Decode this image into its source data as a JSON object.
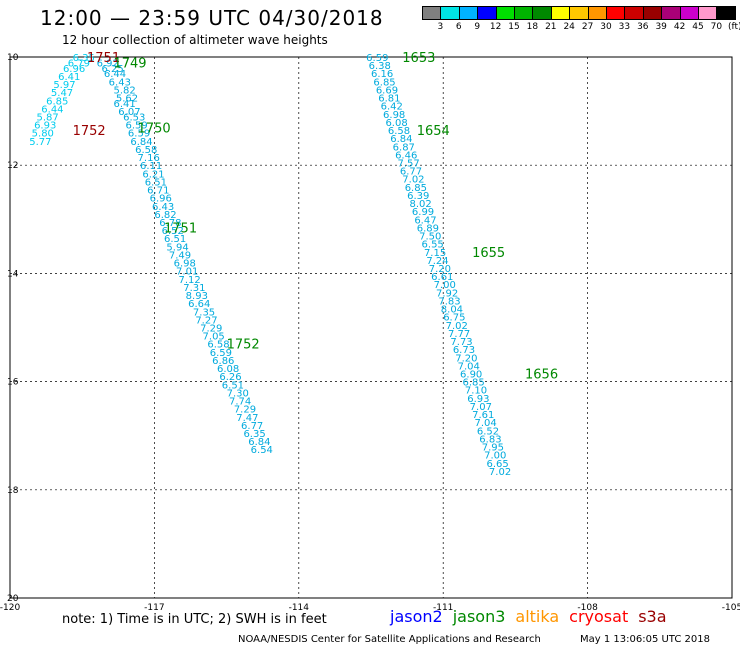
{
  "header": {
    "title": "12:00 — 23:59 UTC 04/30/2018",
    "subtitle": "12 hour collection of altimeter wave heights"
  },
  "color_scale": {
    "labels": [
      "3",
      "6",
      "9",
      "12",
      "15",
      "18",
      "21",
      "24",
      "27",
      "30",
      "33",
      "36",
      "39",
      "42",
      "45",
      "70",
      "(ft)"
    ],
    "colors": [
      "#808080",
      "#00e5e5",
      "#00b2ff",
      "#0000ff",
      "#00e000",
      "#00b400",
      "#008800",
      "#ffff00",
      "#ffc800",
      "#ff9600",
      "#ff0000",
      "#cc0000",
      "#990000",
      "#aa0077",
      "#cc00cc",
      "#ff99cc",
      "#000000"
    ]
  },
  "chart_data": {
    "type": "scatter",
    "xlim": [
      -120,
      -105
    ],
    "ylim": [
      10,
      20
    ],
    "x_ticks": [
      "-120",
      "-117",
      "-114",
      "-111",
      "-108",
      "-105"
    ],
    "y_ticks": [
      "10",
      "12",
      "14",
      "16",
      "18",
      "20"
    ],
    "grid": true,
    "tracks": [
      {
        "color": "#00ccee",
        "points": [
          {
            "x": -118.7,
            "y": 10.0,
            "label": "6.35"
          },
          {
            "x": -118.8,
            "y": 10.1,
            "label": "6.79"
          },
          {
            "x": -118.9,
            "y": 10.2,
            "label": "6.96"
          },
          {
            "x": -119.0,
            "y": 10.35,
            "label": "6.41"
          },
          {
            "x": -119.1,
            "y": 10.5,
            "label": "5.97"
          },
          {
            "x": -119.15,
            "y": 10.65,
            "label": "5.47"
          },
          {
            "x": -119.25,
            "y": 10.8,
            "label": "6.85"
          },
          {
            "x": -119.35,
            "y": 10.95,
            "label": "6.44"
          },
          {
            "x": -119.45,
            "y": 11.1,
            "label": "5.87"
          },
          {
            "x": -119.5,
            "y": 11.25,
            "label": "6.93"
          },
          {
            "x": -119.55,
            "y": 11.4,
            "label": "5.80"
          },
          {
            "x": -119.6,
            "y": 11.55,
            "label": "5.77"
          }
        ]
      },
      {
        "color": "#00aadd",
        "points": [
          {
            "x": -118.2,
            "y": 10.1,
            "label": "6.92"
          },
          {
            "x": -118.1,
            "y": 10.2,
            "label": "6.25"
          },
          {
            "x": -118.05,
            "y": 10.3,
            "label": "6.44"
          },
          {
            "x": -117.95,
            "y": 10.45,
            "label": "6.43"
          },
          {
            "x": -117.85,
            "y": 10.6,
            "label": "5.82"
          },
          {
            "x": -117.8,
            "y": 10.75,
            "label": "5.62"
          },
          {
            "x": -117.85,
            "y": 10.85,
            "label": "6.41"
          },
          {
            "x": -117.75,
            "y": 11.0,
            "label": "6.07"
          },
          {
            "x": -117.65,
            "y": 11.1,
            "label": "6.53"
          },
          {
            "x": -117.6,
            "y": 11.25,
            "label": "6.59"
          },
          {
            "x": -117.55,
            "y": 11.4,
            "label": "6.59"
          },
          {
            "x": -117.5,
            "y": 11.55,
            "label": "6.84"
          },
          {
            "x": -117.4,
            "y": 11.7,
            "label": "6.58"
          },
          {
            "x": -117.35,
            "y": 11.85,
            "label": "7.16"
          },
          {
            "x": -117.3,
            "y": 12.0,
            "label": "6.11"
          },
          {
            "x": -117.25,
            "y": 12.15,
            "label": "6.21"
          },
          {
            "x": -117.2,
            "y": 12.3,
            "label": "6.51"
          },
          {
            "x": -117.15,
            "y": 12.45,
            "label": "6.71"
          },
          {
            "x": -117.1,
            "y": 12.6,
            "label": "6.96"
          },
          {
            "x": -117.05,
            "y": 12.75,
            "label": "6.43"
          },
          {
            "x": -117.0,
            "y": 12.9,
            "label": "6.82"
          },
          {
            "x": -116.9,
            "y": 13.05,
            "label": "6.78"
          },
          {
            "x": -116.85,
            "y": 13.2,
            "label": "6.52"
          },
          {
            "x": -116.8,
            "y": 13.35,
            "label": "6.51"
          },
          {
            "x": -116.75,
            "y": 13.5,
            "label": "5.94"
          },
          {
            "x": -116.7,
            "y": 13.65,
            "label": "7.49"
          },
          {
            "x": -116.6,
            "y": 13.8,
            "label": "6.98"
          },
          {
            "x": -116.55,
            "y": 13.95,
            "label": "7.01"
          },
          {
            "x": -116.5,
            "y": 14.1,
            "label": "7.12"
          },
          {
            "x": -116.4,
            "y": 14.25,
            "label": "7.31"
          },
          {
            "x": -116.35,
            "y": 14.4,
            "label": "8.93"
          },
          {
            "x": -116.3,
            "y": 14.55,
            "label": "6.64"
          },
          {
            "x": -116.2,
            "y": 14.7,
            "label": "7.35"
          },
          {
            "x": -116.15,
            "y": 14.85,
            "label": "7.27"
          },
          {
            "x": -116.05,
            "y": 15.0,
            "label": "7.29"
          },
          {
            "x": -116.0,
            "y": 15.15,
            "label": "7.05"
          },
          {
            "x": -115.9,
            "y": 15.3,
            "label": "6.58"
          },
          {
            "x": -115.85,
            "y": 15.45,
            "label": "6.59"
          },
          {
            "x": -115.8,
            "y": 15.6,
            "label": "6.86"
          },
          {
            "x": -115.7,
            "y": 15.75,
            "label": "6.08"
          },
          {
            "x": -115.65,
            "y": 15.9,
            "label": "6.26"
          },
          {
            "x": -115.6,
            "y": 16.05,
            "label": "6.51"
          },
          {
            "x": -115.5,
            "y": 16.2,
            "label": "7.30"
          },
          {
            "x": -115.45,
            "y": 16.35,
            "label": "7.74"
          },
          {
            "x": -115.35,
            "y": 16.5,
            "label": "7.29"
          },
          {
            "x": -115.3,
            "y": 16.65,
            "label": "7.47"
          },
          {
            "x": -115.2,
            "y": 16.8,
            "label": "6.77"
          },
          {
            "x": -115.15,
            "y": 16.95,
            "label": "6.35"
          },
          {
            "x": -115.05,
            "y": 17.1,
            "label": "6.84"
          },
          {
            "x": -115.0,
            "y": 17.25,
            "label": "6.54"
          }
        ]
      },
      {
        "color": "#00aadd",
        "points": [
          {
            "x": -112.6,
            "y": 10.0,
            "label": "6.59"
          },
          {
            "x": -112.55,
            "y": 10.15,
            "label": "6.38"
          },
          {
            "x": -112.5,
            "y": 10.3,
            "label": "6.16"
          },
          {
            "x": -112.45,
            "y": 10.45,
            "label": "6.85"
          },
          {
            "x": -112.4,
            "y": 10.6,
            "label": "6.69"
          },
          {
            "x": -112.35,
            "y": 10.75,
            "label": "6.81"
          },
          {
            "x": -112.3,
            "y": 10.9,
            "label": "6.42"
          },
          {
            "x": -112.25,
            "y": 11.05,
            "label": "6.98"
          },
          {
            "x": -112.2,
            "y": 11.2,
            "label": "6.08"
          },
          {
            "x": -112.15,
            "y": 11.35,
            "label": "6.58"
          },
          {
            "x": -112.1,
            "y": 11.5,
            "label": "6.84"
          },
          {
            "x": -112.05,
            "y": 11.65,
            "label": "6.87"
          },
          {
            "x": -112.0,
            "y": 11.8,
            "label": "6.46"
          },
          {
            "x": -111.95,
            "y": 11.95,
            "label": "7.57"
          },
          {
            "x": -111.9,
            "y": 12.1,
            "label": "6.77"
          },
          {
            "x": -111.85,
            "y": 12.25,
            "label": "7.02"
          },
          {
            "x": -111.8,
            "y": 12.4,
            "label": "6.85"
          },
          {
            "x": -111.75,
            "y": 12.55,
            "label": "6.39"
          },
          {
            "x": -111.7,
            "y": 12.7,
            "label": "8.02"
          },
          {
            "x": -111.65,
            "y": 12.85,
            "label": "6.99"
          },
          {
            "x": -111.6,
            "y": 13.0,
            "label": "6.47"
          },
          {
            "x": -111.55,
            "y": 13.15,
            "label": "6.89"
          },
          {
            "x": -111.5,
            "y": 13.3,
            "label": "7.50"
          },
          {
            "x": -111.45,
            "y": 13.45,
            "label": "6.55"
          },
          {
            "x": -111.4,
            "y": 13.6,
            "label": "7.15"
          },
          {
            "x": -111.35,
            "y": 13.75,
            "label": "7.24"
          },
          {
            "x": -111.3,
            "y": 13.9,
            "label": "7.20"
          },
          {
            "x": -111.25,
            "y": 14.05,
            "label": "6.61"
          },
          {
            "x": -111.2,
            "y": 14.2,
            "label": "7.00"
          },
          {
            "x": -111.15,
            "y": 14.35,
            "label": "7.92"
          },
          {
            "x": -111.1,
            "y": 14.5,
            "label": "7.83"
          },
          {
            "x": -111.05,
            "y": 14.65,
            "label": "8.04"
          },
          {
            "x": -111.0,
            "y": 14.8,
            "label": "6.75"
          },
          {
            "x": -110.95,
            "y": 14.95,
            "label": "7.02"
          },
          {
            "x": -110.9,
            "y": 15.1,
            "label": "7.77"
          },
          {
            "x": -110.85,
            "y": 15.25,
            "label": "7.73"
          },
          {
            "x": -110.8,
            "y": 15.4,
            "label": "6.73"
          },
          {
            "x": -110.75,
            "y": 15.55,
            "label": "7.20"
          },
          {
            "x": -110.7,
            "y": 15.7,
            "label": "7.04"
          },
          {
            "x": -110.65,
            "y": 15.85,
            "label": "6.90"
          },
          {
            "x": -110.6,
            "y": 16.0,
            "label": "6.85"
          },
          {
            "x": -110.55,
            "y": 16.15,
            "label": "7.10"
          },
          {
            "x": -110.5,
            "y": 16.3,
            "label": "6.93"
          },
          {
            "x": -110.45,
            "y": 16.45,
            "label": "7.07"
          },
          {
            "x": -110.4,
            "y": 16.6,
            "label": "7.61"
          },
          {
            "x": -110.35,
            "y": 16.75,
            "label": "7.04"
          },
          {
            "x": -110.3,
            "y": 16.9,
            "label": "6.52"
          },
          {
            "x": -110.25,
            "y": 17.05,
            "label": "6.83"
          },
          {
            "x": -110.2,
            "y": 17.2,
            "label": "7.95"
          },
          {
            "x": -110.15,
            "y": 17.35,
            "label": "7.00"
          },
          {
            "x": -110.1,
            "y": 17.5,
            "label": "6.65"
          },
          {
            "x": -110.05,
            "y": 17.65,
            "label": "7.02"
          }
        ]
      }
    ],
    "time_labels": [
      {
        "x": -118.4,
        "y": 10.0,
        "text": "1751",
        "color": "#990000"
      },
      {
        "x": -117.85,
        "y": 10.1,
        "text": "1749",
        "color": "#008800"
      },
      {
        "x": -118.7,
        "y": 11.35,
        "text": "1752",
        "color": "#990000"
      },
      {
        "x": -117.35,
        "y": 11.3,
        "text": "1750",
        "color": "#008800"
      },
      {
        "x": -116.8,
        "y": 13.15,
        "text": "1751",
        "color": "#008800"
      },
      {
        "x": -115.5,
        "y": 15.3,
        "text": "1752",
        "color": "#008800"
      },
      {
        "x": -111.85,
        "y": 10.0,
        "text": "1653",
        "color": "#008800"
      },
      {
        "x": -111.55,
        "y": 11.35,
        "text": "1654",
        "color": "#008800"
      },
      {
        "x": -110.4,
        "y": 13.6,
        "text": "1655",
        "color": "#008800"
      },
      {
        "x": -109.3,
        "y": 15.85,
        "text": "1656",
        "color": "#008800"
      }
    ]
  },
  "footer": {
    "note": "note:  1) Time is in UTC;  2) SWH is in feet",
    "legend": [
      {
        "text": "jason2",
        "color": "#0000ff"
      },
      {
        "text": "jason3",
        "color": "#008800"
      },
      {
        "text": "altika",
        "color": "#ff9600"
      },
      {
        "text": "cryosat",
        "color": "#ff0000"
      },
      {
        "text": "s3a",
        "color": "#990000"
      }
    ],
    "credit": "NOAA/NESDIS Center for Satellite Applications and Research",
    "timestamp": "May  1 13:06:05 UTC 2018"
  }
}
